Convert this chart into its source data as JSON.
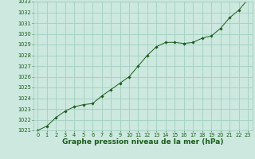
{
  "x": [
    0,
    1,
    2,
    3,
    4,
    5,
    6,
    7,
    8,
    9,
    10,
    11,
    12,
    13,
    14,
    15,
    16,
    17,
    18,
    19,
    20,
    21,
    22,
    23
  ],
  "y": [
    1021.0,
    1021.4,
    1022.2,
    1022.8,
    1023.2,
    1023.4,
    1023.5,
    1024.2,
    1024.8,
    1025.4,
    1026.0,
    1027.0,
    1028.0,
    1028.8,
    1029.2,
    1029.2,
    1029.1,
    1029.2,
    1029.6,
    1029.8,
    1030.5,
    1031.5,
    1032.2,
    1033.2
  ],
  "ylim": [
    1021,
    1033
  ],
  "xlim": [
    -0.5,
    23.5
  ],
  "yticks": [
    1021,
    1022,
    1023,
    1024,
    1025,
    1026,
    1027,
    1028,
    1029,
    1030,
    1031,
    1032,
    1033
  ],
  "xticks": [
    0,
    1,
    2,
    3,
    4,
    5,
    6,
    7,
    8,
    9,
    10,
    11,
    12,
    13,
    14,
    15,
    16,
    17,
    18,
    19,
    20,
    21,
    22,
    23
  ],
  "xlabel": "Graphe pression niveau de la mer (hPa)",
  "line_color": "#1a5c1a",
  "marker_color": "#1a5c1a",
  "bg_color": "#cce8df",
  "grid_color": "#99ccbb",
  "tick_label_color": "#1a5c1a",
  "xlabel_color": "#1a5c1a",
  "tick_fontsize": 4.8,
  "xlabel_fontsize": 6.5
}
